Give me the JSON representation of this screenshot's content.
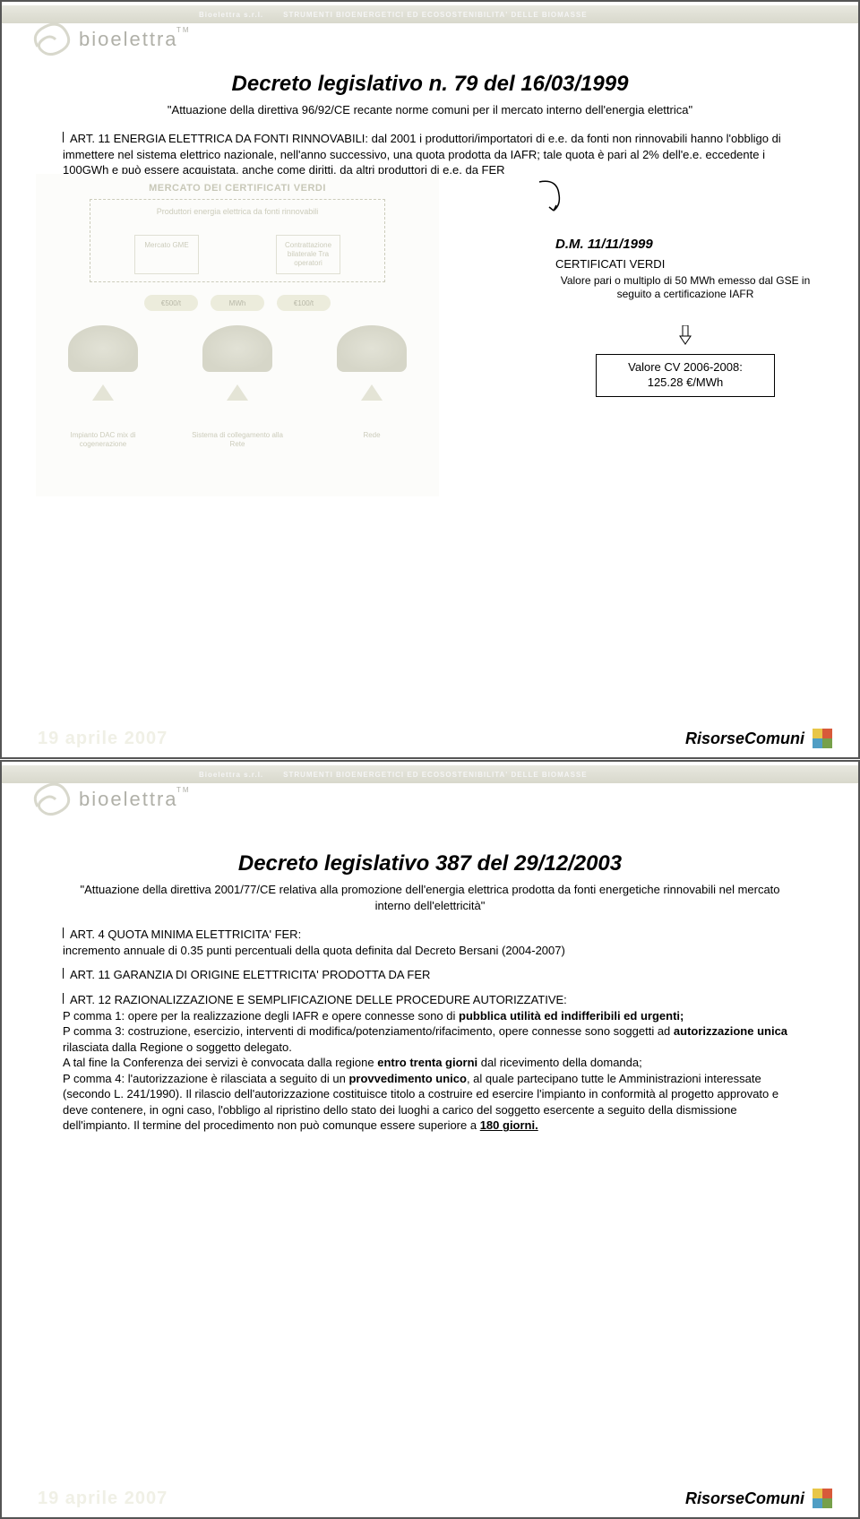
{
  "header": {
    "label1": "Bioelettra s.r.l.",
    "label2": "STRUMENTI BIOENERGETICI ED ECOSOSTENIBILITA' DELLE BIOMASSE"
  },
  "logo": {
    "text": "bioelettra",
    "tm": "TM"
  },
  "footer": {
    "date": "19 aprile 2007",
    "rc": "RisorseComuni"
  },
  "slide1": {
    "title": "Decreto legislativo n. 79 del 16/03/1999",
    "subtitle": "\"Attuazione della direttiva 96/92/CE recante norme comuni per il mercato interno dell'energia elettrica\"",
    "p1_lead": "ART. 11 ENERGIA ELETTRICA DA FONTI RINNOVABILI: dal 2001 i produttori/importatori di e.e. da fonti non rinnovabili hanno l'obbligo di immettere nel sistema elettrico nazionale, nell'anno successivo, una quota prodotta da IAFR; tale quota è pari al 2% dell'e.e. eccedente i 100GWh e può essere acquistata, anche come diritti, da altri produttori di e.e. da FER",
    "diagram": {
      "title": "MERCATO DEI CERTIFICATI VERDI",
      "top_group": "Produttori energia elettrica da fonti rinnovabili",
      "boxes": [
        "Mercato GME",
        "Contrattazione bilaterale Tra operatori"
      ],
      "pills": [
        "€500/t",
        "MWh",
        "€100/t"
      ],
      "descs": [
        "Impianto DAC mix di cogenerazione",
        "Sistema di collegamento alla Rete",
        "Rede"
      ]
    },
    "right": {
      "dm": "D.M. 11/11/1999",
      "cert_label": "CERTIFICATI VERDI",
      "cert_desc": "Valore pari o multiplo di 50 MWh emesso dal GSE in seguito a certificazione IAFR",
      "cv_box": "Valore CV 2006-2008:\n125.28 €/MWh"
    }
  },
  "slide2": {
    "title": "Decreto legislativo 387 del 29/12/2003",
    "subtitle": "\"Attuazione della direttiva 2001/77/CE relativa alla promozione dell'energia elettrica prodotta da fonti energetiche rinnovabili nel mercato interno dell'elettricità\"",
    "p1": "ART. 4 QUOTA MINIMA ELETTRICITA' FER:",
    "p1b": "incremento annuale di 0.35 punti percentuali della quota definita dal Decreto Bersani (2004-2007)",
    "p2": "ART. 11 GARANZIA  DI ORIGINE ELETTRICITA' PRODOTTA DA FER",
    "p3": "ART. 12 RAZIONALIZZAZIONE E SEMPLIFICAZIONE DELLE PROCEDURE AUTORIZZATIVE:",
    "c1_lead": "P comma 1: opere per la realizzazione degli IAFR e opere connesse sono di ",
    "c1_bold": "pubblica utilità ed indifferibili ed urgenti;",
    "c3_a": "P comma 3: costruzione, esercizio, interventi di modifica/potenziamento/rifacimento, opere connesse sono soggetti ad ",
    "c3_bold": "autorizzazione unica",
    "c3_b": " rilasciata dalla Regione o soggetto delegato.",
    "c3_c": "A tal fine la Conferenza dei servizi è convocata dalla regione ",
    "c3_bold2": "entro trenta giorni",
    "c3_d": " dal ricevimento della domanda;",
    "c4_a": "P comma 4: l'autorizzazione è rilasciata a seguito di un ",
    "c4_bold": "provvedimento unico",
    "c4_b": ", al quale partecipano tutte le Amministrazioni interessate (secondo L. 241/1990). Il rilascio dell'autorizzazione costituisce titolo a costruire ed esercire l'impianto in conformità al progetto approvato e deve contenere, in ogni caso, l'obbligo al ripristino dello stato dei luoghi a carico del soggetto esercente a seguito della dismissione dell'impianto. Il termine del procedimento non può comunque essere superiore a ",
    "c4_link": "180 giorni."
  }
}
